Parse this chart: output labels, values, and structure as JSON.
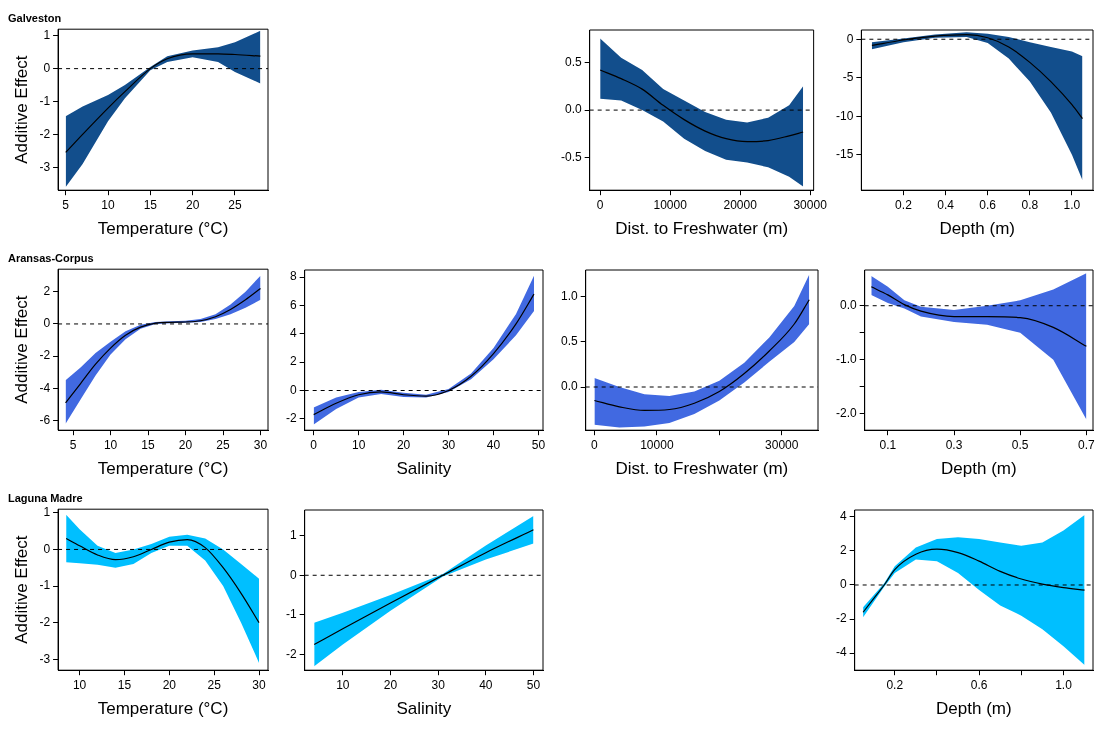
{
  "chart_data": [
    {
      "type": "line",
      "title": "Galveston",
      "xlabel": "Temperature (°C)",
      "ylabel": "Additive Effect",
      "x": [
        5,
        7,
        10,
        12,
        15,
        17,
        20,
        23,
        25,
        28
      ],
      "xlim": [
        4.1,
        28.9
      ],
      "xticks": [
        5,
        10,
        15,
        20,
        25
      ],
      "ylim": [
        -3.7,
        1.2
      ],
      "yticks": [
        -3,
        -2,
        -1,
        0,
        1
      ],
      "ref_lines": [
        {
          "axis": "y",
          "value": 0,
          "line_style": "dashed"
        }
      ],
      "grid": false,
      "legend": false,
      "series": [
        {
          "color": "#000000",
          "colors": [
            "#124e8c",
            "#124e8c",
            "#124e8c",
            "#124e8c",
            "#124e8c",
            "#124e8c",
            "#124e8c",
            "#124e8c",
            "#124e8c",
            "#124e8c"
          ],
          "values": [
            -2.55,
            -2.0,
            -1.2,
            -0.7,
            0.0,
            0.3,
            0.45,
            0.45,
            0.43,
            0.38
          ],
          "lower": [
            -3.6,
            -2.9,
            -1.6,
            -0.9,
            -0.05,
            0.2,
            0.35,
            0.2,
            -0.1,
            -0.45
          ],
          "upper": [
            -1.45,
            -1.15,
            -0.8,
            -0.5,
            0.05,
            0.38,
            0.55,
            0.65,
            0.8,
            1.15
          ]
        }
      ]
    },
    {
      "type": "line",
      "xlabel": "Dist. to Freshwater (m)",
      "x": [
        0,
        3000,
        6000,
        9000,
        12000,
        15000,
        18000,
        21000,
        24000,
        27000,
        29000
      ],
      "xlim": [
        -1500,
        30500
      ],
      "xticks": [
        0,
        10000,
        20000,
        30000
      ],
      "ylim": [
        -0.84,
        0.84
      ],
      "yticks": [
        {
          "value": -0.5,
          "label": "-0.5"
        },
        {
          "value": 0,
          "label": "0.0"
        },
        {
          "value": 0.5,
          "label": "0.5"
        }
      ],
      "ref_lines": [
        {
          "axis": "y",
          "value": 0,
          "line_style": "dashed"
        }
      ],
      "grid": false,
      "legend": false,
      "series": [
        {
          "color": "#000000",
          "colors": [
            "#124e8c",
            "#124e8c",
            "#124e8c",
            "#124e8c",
            "#124e8c",
            "#124e8c",
            "#124e8c",
            "#124e8c",
            "#124e8c",
            "#124e8c",
            "#124e8c"
          ],
          "values": [
            0.42,
            0.33,
            0.22,
            0.05,
            -0.1,
            -0.22,
            -0.3,
            -0.33,
            -0.32,
            -0.27,
            -0.23
          ],
          "lower": [
            0.12,
            0.1,
            0.0,
            -0.12,
            -0.3,
            -0.43,
            -0.52,
            -0.55,
            -0.6,
            -0.7,
            -0.8
          ],
          "upper": [
            0.75,
            0.55,
            0.42,
            0.22,
            0.1,
            -0.02,
            -0.1,
            -0.13,
            -0.08,
            0.05,
            0.25
          ]
        }
      ]
    },
    {
      "type": "line",
      "xlabel": "Depth (m)",
      "x": [
        0.05,
        0.2,
        0.35,
        0.5,
        0.6,
        0.7,
        0.8,
        0.9,
        1.0,
        1.05
      ],
      "xlim": [
        0.0,
        1.1
      ],
      "xticks": [
        0.2,
        0.4,
        0.6,
        0.8,
        {
          "value": 1.0,
          "label": "1.0"
        }
      ],
      "ylim": [
        -19.6,
        1.2
      ],
      "yticks": [
        -15,
        -10,
        -5,
        0
      ],
      "ref_lines": [
        {
          "axis": "y",
          "value": 0,
          "line_style": "dashed"
        }
      ],
      "grid": false,
      "legend": false,
      "series": [
        {
          "color": "#000000",
          "colors": [
            "#124e8c",
            "#124e8c",
            "#124e8c",
            "#124e8c",
            "#124e8c",
            "#124e8c",
            "#124e8c",
            "#124e8c",
            "#124e8c",
            "#124e8c"
          ],
          "values": [
            -0.8,
            -0.1,
            0.4,
            0.6,
            0.2,
            -1.0,
            -3.0,
            -5.5,
            -8.5,
            -10.3
          ],
          "lower": [
            -1.3,
            -0.4,
            0.2,
            0.3,
            -0.5,
            -2.5,
            -5.5,
            -9.5,
            -15,
            -18.3
          ],
          "upper": [
            -0.4,
            0.1,
            0.6,
            0.9,
            0.7,
            0.3,
            -0.4,
            -1.0,
            -1.6,
            -2.2
          ]
        }
      ]
    },
    {
      "type": "line",
      "title": "Aransas-Corpus",
      "xlabel": "Temperature (°C)",
      "ylabel": "Additive Effect",
      "x": [
        4,
        6,
        8,
        10,
        12,
        14,
        16,
        18,
        20,
        22,
        24,
        26,
        28,
        30
      ],
      "xlim": [
        3,
        31
      ],
      "xticks": [
        5,
        10,
        15,
        20,
        25,
        30
      ],
      "ylim": [
        -6.6,
        3.4
      ],
      "yticks": [
        -6,
        -4,
        -2,
        0,
        2
      ],
      "ref_lines": [
        {
          "axis": "y",
          "value": 0,
          "line_style": "dashed"
        }
      ],
      "grid": false,
      "legend": false,
      "series": [
        {
          "color": "#000000",
          "colors": [
            "#4169e1",
            "#4169e1",
            "#4169e1",
            "#4169e1",
            "#4169e1",
            "#4169e1",
            "#4169e1",
            "#4169e1",
            "#4169e1",
            "#4169e1",
            "#4169e1",
            "#4169e1",
            "#4169e1",
            "#4169e1"
          ],
          "values": [
            -4.9,
            -3.7,
            -2.5,
            -1.5,
            -0.7,
            -0.2,
            0.05,
            0.1,
            0.12,
            0.2,
            0.45,
            0.9,
            1.5,
            2.2
          ],
          "lower": [
            -6.2,
            -4.7,
            -3.2,
            -1.9,
            -0.95,
            -0.3,
            0.0,
            0.05,
            0.07,
            0.12,
            0.3,
            0.6,
            1.0,
            1.5
          ],
          "upper": [
            -3.5,
            -2.7,
            -1.8,
            -1.1,
            -0.45,
            -0.05,
            0.12,
            0.17,
            0.2,
            0.3,
            0.6,
            1.2,
            2.0,
            3.0
          ]
        }
      ]
    },
    {
      "type": "line",
      "xlabel": "Salinity",
      "x": [
        0,
        5,
        10,
        15,
        20,
        25,
        30,
        35,
        40,
        45,
        49
      ],
      "xlim": [
        -2,
        51
      ],
      "xticks": [
        0,
        10,
        20,
        30,
        40,
        50
      ],
      "ylim": [
        -2.8,
        8.5
      ],
      "yticks": [
        -2,
        0,
        2,
        4,
        6,
        8
      ],
      "ref_lines": [
        {
          "axis": "y",
          "value": 0,
          "line_style": "dashed"
        }
      ],
      "grid": false,
      "legend": false,
      "series": [
        {
          "color": "#000000",
          "colors": [
            "#4169e1",
            "#4169e1",
            "#4169e1",
            "#4169e1",
            "#4169e1",
            "#4169e1",
            "#4169e1",
            "#4169e1",
            "#4169e1",
            "#4169e1",
            "#4169e1"
          ],
          "values": [
            -1.7,
            -0.9,
            -0.3,
            -0.1,
            -0.3,
            -0.4,
            0.0,
            1.0,
            2.6,
            4.7,
            6.8
          ],
          "lower": [
            -2.4,
            -1.3,
            -0.5,
            -0.25,
            -0.45,
            -0.5,
            -0.1,
            0.8,
            2.2,
            3.9,
            5.6
          ],
          "upper": [
            -1.2,
            -0.5,
            -0.1,
            0.05,
            -0.15,
            -0.3,
            0.1,
            1.2,
            3.0,
            5.4,
            8.1
          ]
        }
      ]
    },
    {
      "type": "line",
      "xlabel": "Dist. to Freshwater (m)",
      "x": [
        0,
        4000,
        8000,
        12000,
        16000,
        20000,
        24000,
        28000,
        32000,
        34400
      ],
      "xlim": [
        -1400,
        35800
      ],
      "xticks": [
        0,
        10000,
        {
          "value": 20000,
          "label": null
        },
        30000
      ],
      "ylim": [
        -0.48,
        1.3
      ],
      "yticks": [
        {
          "value": 0,
          "label": "0.0"
        },
        {
          "value": 0.5,
          "label": "0.5"
        },
        {
          "value": 1,
          "label": "1.0"
        }
      ],
      "ref_lines": [
        {
          "axis": "y",
          "value": 0,
          "line_style": "dashed"
        }
      ],
      "grid": false,
      "legend": false,
      "series": [
        {
          "color": "#000000",
          "colors": [
            "#4169e1",
            "#4169e1",
            "#4169e1",
            "#4169e1",
            "#4169e1",
            "#4169e1",
            "#4169e1",
            "#4169e1",
            "#4169e1",
            "#4169e1"
          ],
          "values": [
            -0.15,
            -0.22,
            -0.26,
            -0.25,
            -0.18,
            -0.05,
            0.15,
            0.4,
            0.7,
            0.97
          ],
          "lower": [
            -0.42,
            -0.45,
            -0.44,
            -0.4,
            -0.3,
            -0.15,
            0.05,
            0.28,
            0.5,
            0.7
          ],
          "upper": [
            0.1,
            0.0,
            -0.08,
            -0.1,
            -0.05,
            0.07,
            0.27,
            0.55,
            0.9,
            1.25
          ]
        }
      ]
    },
    {
      "type": "line",
      "xlabel": "Depth (m)",
      "x": [
        0.05,
        0.1,
        0.15,
        0.2,
        0.3,
        0.4,
        0.5,
        0.6,
        0.7
      ],
      "xlim": [
        0.03,
        0.72
      ],
      "xticks": [
        0.1,
        0.3,
        0.5,
        0.7
      ],
      "ylim": [
        -2.3,
        0.66
      ],
      "yticks": [
        {
          "value": -2,
          "label": "-2.0"
        },
        {
          "value": -1.5,
          "label": null
        },
        {
          "value": -1,
          "label": "-1.0"
        },
        {
          "value": -0.5,
          "label": null
        },
        {
          "value": 0,
          "label": "0.0"
        }
      ],
      "ref_lines": [
        {
          "axis": "y",
          "value": 0,
          "line_style": "dashed"
        }
      ],
      "grid": false,
      "legend": false,
      "series": [
        {
          "color": "#000000",
          "colors": [
            "#4169e1",
            "#4169e1",
            "#4169e1",
            "#4169e1",
            "#4169e1",
            "#4169e1",
            "#4169e1",
            "#4169e1",
            "#4169e1"
          ],
          "values": [
            0.35,
            0.2,
            0.02,
            -0.1,
            -0.2,
            -0.2,
            -0.22,
            -0.4,
            -0.75
          ],
          "lower": [
            0.2,
            0.05,
            -0.05,
            -0.2,
            -0.3,
            -0.35,
            -0.5,
            -1.0,
            -2.1
          ],
          "upper": [
            0.55,
            0.35,
            0.1,
            -0.02,
            -0.08,
            0.0,
            0.1,
            0.3,
            0.6
          ]
        }
      ]
    },
    {
      "type": "line",
      "title": "Laguna Madre",
      "xlabel": "Temperature (°C)",
      "ylabel": "Additive Effect",
      "x": [
        8.5,
        10,
        12,
        14,
        16,
        18,
        20,
        22,
        24,
        26,
        28,
        30
      ],
      "xlim": [
        7.6,
        31
      ],
      "xticks": [
        10,
        15,
        20,
        25,
        30
      ],
      "ylim": [
        -3.3,
        1.1
      ],
      "yticks": [
        -3,
        -2,
        -1,
        0,
        1
      ],
      "ref_lines": [
        {
          "axis": "y",
          "value": 0,
          "line_style": "dashed"
        }
      ],
      "grid": false,
      "legend": false,
      "series": [
        {
          "color": "#000000",
          "colors": [
            "#00bfff",
            "#00bfff",
            "#00bfff",
            "#00bfff",
            "#00bfff",
            "#00bfff",
            "#00bfff",
            "#00bfff",
            "#00bfff",
            "#00bfff",
            "#00bfff",
            "#00bfff"
          ],
          "values": [
            0.3,
            0.1,
            -0.15,
            -0.28,
            -0.2,
            0.0,
            0.2,
            0.27,
            0.05,
            -0.5,
            -1.2,
            -2.0
          ],
          "lower": [
            -0.35,
            -0.38,
            -0.42,
            -0.5,
            -0.4,
            -0.1,
            0.1,
            0.1,
            -0.3,
            -1.0,
            -2.0,
            -3.1
          ],
          "upper": [
            0.95,
            0.55,
            0.1,
            -0.1,
            0.0,
            0.15,
            0.35,
            0.4,
            0.3,
            0.0,
            -0.4,
            -0.8
          ]
        }
      ]
    },
    {
      "type": "line",
      "xlabel": "Salinity",
      "x": [
        4,
        10,
        20,
        31,
        40,
        50
      ],
      "xlim": [
        2,
        52
      ],
      "xticks": [
        10,
        20,
        30,
        40,
        50
      ],
      "ylim": [
        -2.4,
        1.65
      ],
      "yticks": [
        -2,
        -1,
        0,
        1
      ],
      "ref_lines": [
        {
          "axis": "y",
          "value": 0,
          "line_style": "dashed"
        }
      ],
      "grid": false,
      "legend": false,
      "series": [
        {
          "color": "#000000",
          "colors": [
            "#00bfff",
            "#00bfff",
            "#00bfff",
            "#00bfff",
            "#00bfff",
            "#00bfff"
          ],
          "values": [
            -1.75,
            -1.35,
            -0.7,
            0.0,
            0.57,
            1.15
          ],
          "lower": [
            -2.3,
            -1.75,
            -0.9,
            -0.03,
            0.4,
            0.8
          ],
          "upper": [
            -1.2,
            -0.95,
            -0.5,
            0.03,
            0.75,
            1.5
          ]
        }
      ]
    },
    {
      "type": "line",
      "xlabel": "Depth (m)",
      "x": [
        0.05,
        0.1,
        0.15,
        0.2,
        0.3,
        0.4,
        0.5,
        0.6,
        0.7,
        0.8,
        0.9,
        1.0,
        1.1
      ],
      "xlim": [
        0.01,
        1.14
      ],
      "xticks": [
        0.2,
        {
          "value": 0.4,
          "label": null
        },
        0.6,
        {
          "value": 0.8,
          "label": null
        },
        {
          "value": 1.0,
          "label": "1.0"
        }
      ],
      "ylim": [
        -5.0,
        4.4
      ],
      "yticks": [
        -4,
        -2,
        0,
        2,
        4
      ],
      "ref_lines": [
        {
          "axis": "y",
          "value": 0,
          "line_style": "dashed"
        }
      ],
      "grid": false,
      "legend": false,
      "series": [
        {
          "color": "#000000",
          "colors": [
            "#00bfff",
            "#00bfff",
            "#00bfff",
            "#00bfff",
            "#00bfff",
            "#00bfff",
            "#00bfff",
            "#00bfff",
            "#00bfff",
            "#00bfff",
            "#00bfff",
            "#00bfff",
            "#00bfff"
          ],
          "values": [
            -1.6,
            -0.8,
            0.0,
            0.9,
            1.8,
            2.1,
            1.9,
            1.4,
            0.8,
            0.35,
            0.05,
            -0.15,
            -0.3
          ],
          "lower": [
            -1.9,
            -1.0,
            -0.1,
            0.7,
            1.5,
            1.4,
            0.7,
            -0.3,
            -1.2,
            -1.8,
            -2.6,
            -3.6,
            -4.7
          ],
          "upper": [
            -1.3,
            -0.6,
            0.1,
            1.1,
            2.2,
            2.7,
            2.8,
            2.7,
            2.5,
            2.3,
            2.5,
            3.2,
            4.1
          ]
        }
      ]
    }
  ]
}
